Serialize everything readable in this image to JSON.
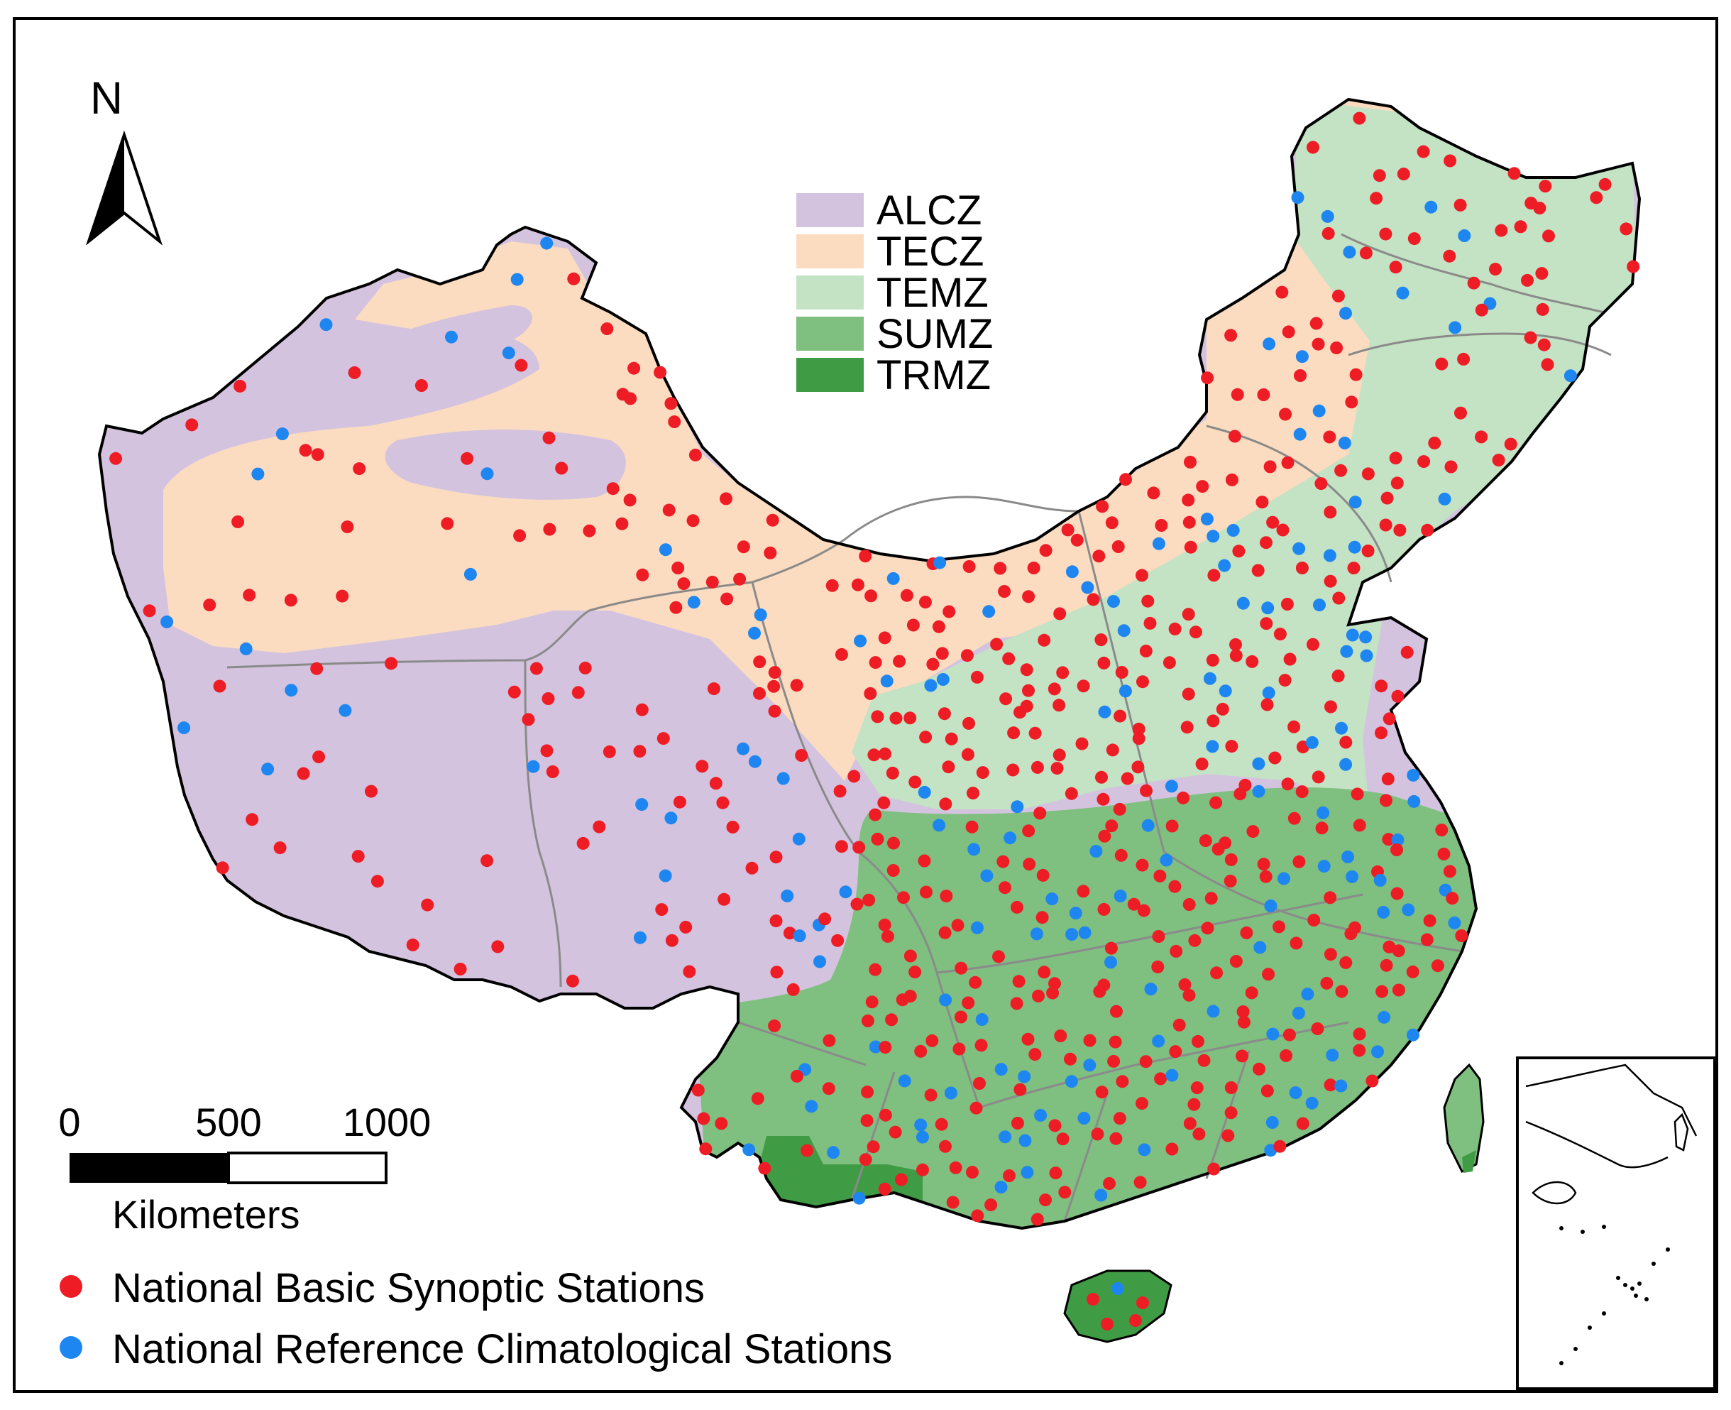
{
  "map": {
    "north_label": "N",
    "zones": [
      {
        "code": "ALCZ",
        "color": "#d4c3de"
      },
      {
        "code": "TECZ",
        "color": "#fbdcc0"
      },
      {
        "code": "TEMZ",
        "color": "#c4e2c4"
      },
      {
        "code": "SUMZ",
        "color": "#7fbf80"
      },
      {
        "code": "TRMZ",
        "color": "#3f9c45"
      }
    ],
    "scale_bar": {
      "ticks": [
        "0",
        "500",
        "1000"
      ],
      "unit": "Kilometers"
    },
    "stations": [
      {
        "label": "National Basic Synoptic Stations",
        "color": "#ee1c25"
      },
      {
        "label": "National Reference Climatological Stations",
        "color": "#1e86f0"
      }
    ],
    "boundary_color": "#8a8a8a",
    "outline_color": "#000000"
  }
}
